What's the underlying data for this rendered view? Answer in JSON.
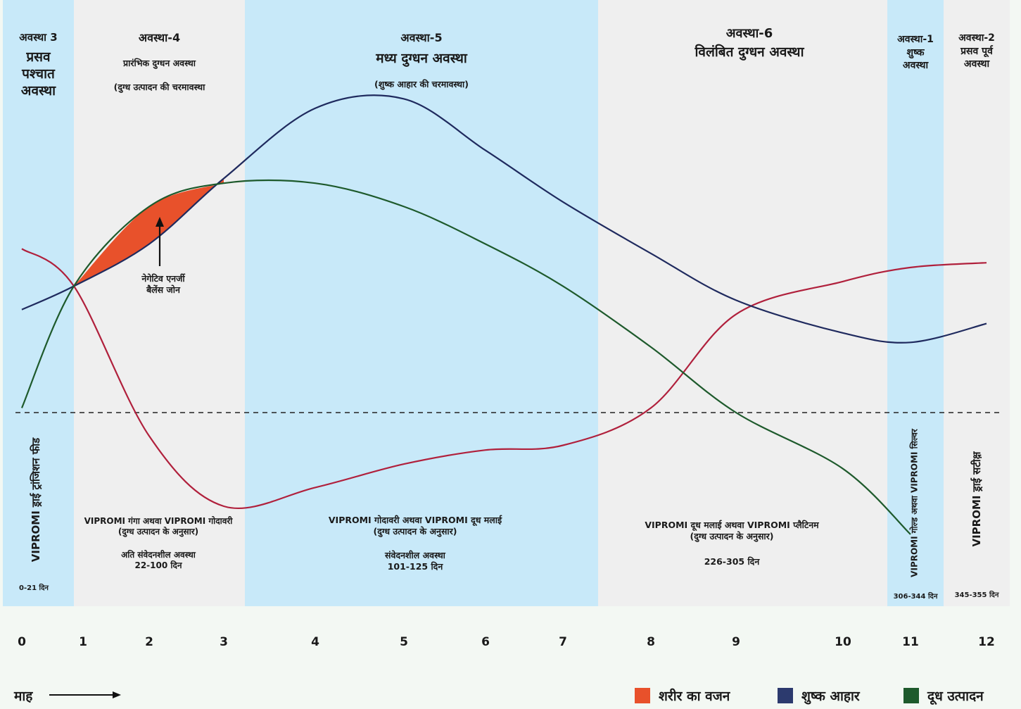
{
  "colors": {
    "body_weight": "#b0203c",
    "dry_feed": "#1f2a5e",
    "milk_production": "#1e5a2c",
    "negative_zone": "#e8512b",
    "band_blue": "#c8e9f9",
    "band_grey": "#efefef"
  },
  "phases": [
    {
      "title": "अवस्था 3",
      "subtitle": "प्रसव\nपश्चात\nअवस्था",
      "note": "",
      "feed": "VIPROMI ड्राई ट्रांजिशन फीड",
      "protocol": "",
      "days": "0-21 दिन"
    },
    {
      "title": "अवस्था-4",
      "subtitle": "प्रारंभिक दुग्धन अवस्था",
      "note": "(दुग्ध उत्पादन की चरमावस्था",
      "feed": "VIPROMI गंगा अथवा VIPROMI  गोदावरी\n(दुग्ध उत्पादन के अनुसार)",
      "protocol": "अति संवेदनशील अवस्था\n22-100 दिन",
      "days": ""
    },
    {
      "title": "अवस्था-5",
      "subtitle": "मध्य दुग्धन अवस्था",
      "note": "(शुष्क आहार की चरमावस्था)",
      "feed": "VIPROMI गोदावरी अथवा VIPROMI  दूध मलाई\n(दुग्ध उत्पादन के अनुसार)",
      "protocol": "संवेदनशील अवस्था\n101-125 दिन",
      "days": ""
    },
    {
      "title": "अवस्था-6",
      "subtitle": "विलंबित दुग्धन अवस्था",
      "note": "",
      "feed": "VIPROMI दूध मलाई अथवा VIPROMI प्लैटिनम\n(दुग्ध उत्पादन के अनुसार)",
      "protocol": "226-305 दिन",
      "days": ""
    },
    {
      "title": "अवस्था-1",
      "subtitle": "शुष्क\nअवस्था",
      "note": "",
      "feed": "VIPROMI गोल्ड अथवा  VIPROMI सिल्वर",
      "protocol": "",
      "days": "306-344 दिन"
    },
    {
      "title": "अवस्था-2",
      "subtitle": "प्रसव पूर्व\nअवस्था",
      "note": "",
      "feed": "VIPROMI ड्राई सटीक्ष़",
      "protocol": "",
      "days": "345-355 दिन"
    }
  ],
  "annotation": "नेगेटिव एनर्जी\nबैलेंस जोन",
  "x_axis_label": "माह",
  "chart_data": {
    "type": "line",
    "x": [
      0,
      1,
      2,
      3,
      4,
      5,
      6,
      7,
      8,
      9,
      10,
      11,
      12
    ],
    "x_ticks": [
      "0",
      "1",
      "2",
      "3",
      "4",
      "5",
      "6",
      "7",
      "8",
      "9",
      "10",
      "11",
      "12"
    ],
    "xlabel": "माह",
    "ylabel": "",
    "series": [
      {
        "name": "शरीर का वजन",
        "color": "#b0203c",
        "x": [
          0,
          1,
          2,
          3,
          4,
          5,
          6,
          7,
          8,
          9,
          10,
          11,
          12
        ],
        "values": [
          0.35,
          0.27,
          -0.05,
          -0.2,
          -0.16,
          -0.11,
          -0.08,
          -0.07,
          0.01,
          0.21,
          0.28,
          0.31,
          0.32
        ]
      },
      {
        "name": "शुष्क आहार",
        "color": "#1f2a5e",
        "x": [
          0,
          1,
          2,
          3,
          4,
          5,
          6,
          7,
          8,
          9,
          10,
          11,
          12
        ],
        "values": [
          0.22,
          0.27,
          0.36,
          0.5,
          0.65,
          0.67,
          0.56,
          0.45,
          0.34,
          0.24,
          0.17,
          0.15,
          0.19
        ]
      },
      {
        "name": "दूध उत्पादन",
        "color": "#1e5a2c",
        "x": [
          0,
          1,
          2,
          3,
          4,
          5,
          6,
          7,
          8,
          9,
          10,
          11
        ],
        "values": [
          0.01,
          0.27,
          0.44,
          0.49,
          0.49,
          0.44,
          0.36,
          0.27,
          0.14,
          0.0,
          -0.12,
          -0.26
        ]
      }
    ],
    "baseline": 0,
    "grid": false,
    "legend_position": "bottom-right"
  },
  "legend": [
    {
      "label": "शरीर का वजन",
      "color": "#e8512b"
    },
    {
      "label": "शुष्क आहार",
      "color": "#2c3a6e"
    },
    {
      "label": "दूध उत्पादन",
      "color": "#1e5a2c"
    }
  ]
}
